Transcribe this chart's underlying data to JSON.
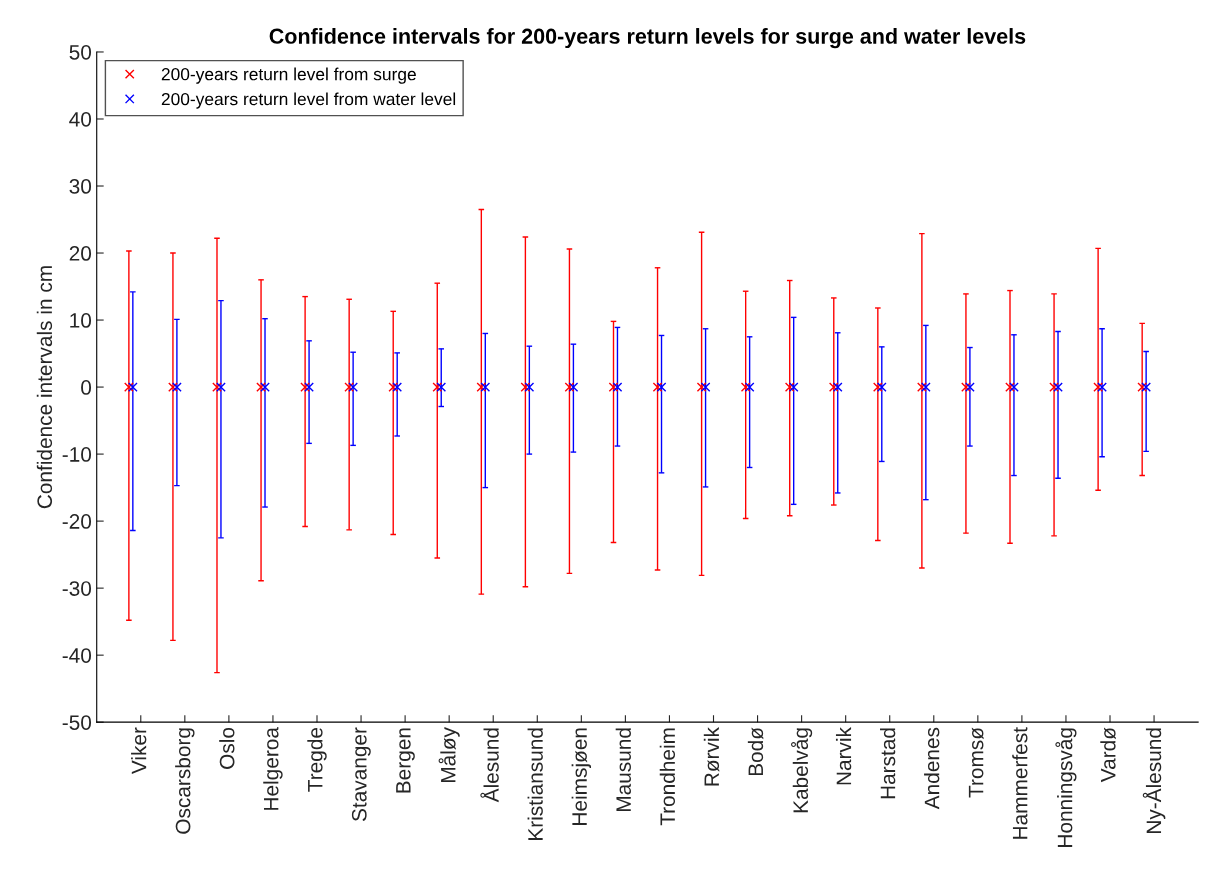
{
  "chart_data": {
    "type": "scatter",
    "title": "Confidence intervals for 200-years return levels for surge and water levels",
    "ylabel": "Confidence intervals in cm",
    "categories": [
      "Viker",
      "Oscarsborg",
      "Oslo",
      "Helgeroa",
      "Tregde",
      "Stavanger",
      "Bergen",
      "Måløy",
      "Ålesund",
      "Kristiansund",
      "Heimsjøen",
      "Mausund",
      "Trondheim",
      "Rørvik",
      "Bodø",
      "Kabelvåg",
      "Narvik",
      "Harstad",
      "Andenes",
      "Tromsø",
      "Hammerfest",
      "Honningsvåg",
      "Vardø",
      "Ny-Ålesund"
    ],
    "series": [
      {
        "name": "200-years return level from surge",
        "color": "#ff0000",
        "values": [
          0,
          0,
          0,
          0,
          0,
          0,
          0,
          0,
          0,
          0,
          0,
          0,
          0,
          0,
          0,
          0,
          0,
          0,
          0,
          0,
          0,
          0,
          0,
          0
        ],
        "errors": [
          [
            -34.8,
            20.3
          ],
          [
            -37.8,
            20
          ],
          [
            -42.6,
            22.2
          ],
          [
            -28.9,
            16
          ],
          [
            -20.8,
            13.5
          ],
          [
            -21.3,
            13.1
          ],
          [
            -22,
            11.3
          ],
          [
            -25.5,
            15.5
          ],
          [
            -30.9,
            26.5
          ],
          [
            -29.8,
            22.4
          ],
          [
            -27.8,
            20.6
          ],
          [
            -23.2,
            9.8
          ],
          [
            -27.3,
            17.8
          ],
          [
            -28.1,
            23.1
          ],
          [
            -19.6,
            14.3
          ],
          [
            -19.2,
            15.9
          ],
          [
            -17.6,
            13.3
          ],
          [
            -22.9,
            11.8
          ],
          [
            -27,
            22.9
          ],
          [
            -21.8,
            13.9
          ],
          [
            -23.3,
            14.4
          ],
          [
            -22.2,
            13.9
          ],
          [
            -15.4,
            20.7
          ],
          [
            -13.2,
            9.5
          ]
        ]
      },
      {
        "name": "200-years return level from water level",
        "color": "#0000ff",
        "values": [
          0,
          0,
          0,
          0,
          0,
          0,
          0,
          0,
          0,
          0,
          0,
          0,
          0,
          0,
          0,
          0,
          0,
          0,
          0,
          0,
          0,
          0,
          0,
          0
        ],
        "errors": [
          [
            -21.4,
            14.2
          ],
          [
            -14.7,
            10.1
          ],
          [
            -22.5,
            12.9
          ],
          [
            -17.9,
            10.2
          ],
          [
            -8.4,
            6.9
          ],
          [
            -8.7,
            5.2
          ],
          [
            -7.3,
            5.1
          ],
          [
            -2.9,
            5.7
          ],
          [
            -15,
            8
          ],
          [
            -10,
            6.1
          ],
          [
            -9.7,
            6.4
          ],
          [
            -8.8,
            8.9
          ],
          [
            -12.8,
            7.7
          ],
          [
            -14.9,
            8.7
          ],
          [
            -12,
            7.5
          ],
          [
            -17.5,
            10.4
          ],
          [
            -15.8,
            8.1
          ],
          [
            -11.1,
            6
          ],
          [
            -16.8,
            9.2
          ],
          [
            -8.8,
            5.9
          ],
          [
            -13.2,
            7.8
          ],
          [
            -13.6,
            8.3
          ],
          [
            -10.4,
            8.7
          ],
          [
            -9.6,
            5.3
          ]
        ]
      }
    ],
    "ylim": [
      -50,
      50
    ],
    "yticks": [
      -50,
      -40,
      -30,
      -20,
      -10,
      0,
      10,
      20,
      30,
      40,
      50
    ],
    "marker": "cross",
    "legend": "top left",
    "grid": false
  }
}
